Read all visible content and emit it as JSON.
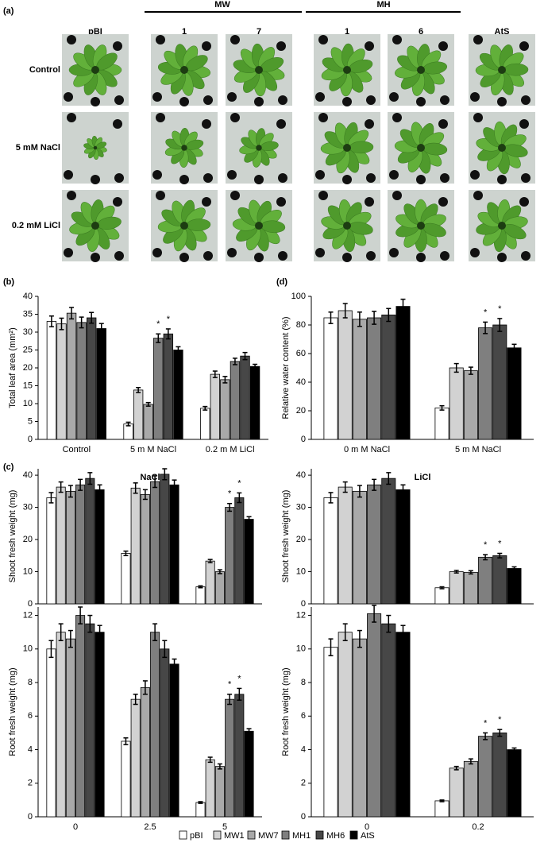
{
  "panel_labels": [
    "(a)",
    "(b)",
    "(c)",
    "(d)"
  ],
  "photo_grid": {
    "columns": [
      "pBI",
      "1",
      "7",
      "1",
      "6",
      "AtS"
    ],
    "groups": [
      "MW",
      "MH"
    ],
    "rows": [
      "Control",
      "5 mM NaCl",
      "0.2 mM LiCl"
    ]
  },
  "series_styles": [
    {
      "name": "pBI",
      "color": "#ffffff"
    },
    {
      "name": "MW1",
      "color": "#d2d2d2"
    },
    {
      "name": "MW7",
      "color": "#a9a9a9"
    },
    {
      "name": "MH1",
      "color": "#7f7f7f"
    },
    {
      "name": "MH6",
      "color": "#474747"
    },
    {
      "name": "AtS",
      "color": "#000000"
    }
  ],
  "chart_data": [
    {
      "type": "bar",
      "y_label": "Total leaf area (mm²)",
      "categories": [
        "Control",
        "5 m M NaCl",
        "0.2 m M LiCl"
      ],
      "ylim": [
        0,
        40
      ],
      "yticks": [
        0,
        5,
        10,
        15,
        20,
        25,
        30,
        35,
        40
      ],
      "annotations": [
        "*",
        "*"
      ],
      "series": [
        {
          "values": [
            33,
            4.3,
            8.7
          ],
          "errors": [
            1.5,
            0.5,
            0.5
          ]
        },
        {
          "values": [
            32.3,
            13.8,
            18.2
          ],
          "errors": [
            1.6,
            0.7,
            0.9
          ]
        },
        {
          "values": [
            35.3,
            9.8,
            16.7
          ],
          "errors": [
            1.6,
            0.5,
            0.9
          ]
        },
        {
          "values": [
            32.7,
            28.3,
            21.8
          ],
          "errors": [
            1.5,
            1.2,
            0.9
          ]
        },
        {
          "values": [
            34,
            29.5,
            23.3
          ],
          "errors": [
            1.5,
            1.4,
            1
          ]
        },
        {
          "values": [
            31,
            25,
            20.4
          ],
          "errors": [
            1.4,
            0.9,
            0.6
          ]
        }
      ]
    },
    {
      "type": "bar",
      "y_label": "Relative water content (%)",
      "categories": [
        "0 m M NaCl",
        "5 m M NaCl"
      ],
      "ylim": [
        0,
        100
      ],
      "yticks": [
        0,
        20,
        40,
        60,
        80,
        100
      ],
      "annotations": [
        "*",
        "*"
      ],
      "series": [
        {
          "values": [
            85,
            22
          ],
          "errors": [
            4,
            1.5
          ]
        },
        {
          "values": [
            90,
            50
          ],
          "errors": [
            5,
            3
          ]
        },
        {
          "values": [
            84,
            48
          ],
          "errors": [
            5,
            2.5
          ]
        },
        {
          "values": [
            85,
            78
          ],
          "errors": [
            4.5,
            4
          ]
        },
        {
          "values": [
            87,
            80
          ],
          "errors": [
            4.5,
            4.5
          ]
        },
        {
          "values": [
            93,
            64
          ],
          "errors": [
            5,
            2.5
          ]
        }
      ]
    },
    {
      "type": "bar",
      "title": "NaCl",
      "y_label": "Shoot fresh weight (mg)",
      "categories": [
        null,
        null,
        null
      ],
      "ylim": [
        0,
        42
      ],
      "yticks": [
        0,
        10,
        20,
        30,
        40
      ],
      "annotations": [
        "*",
        "*"
      ],
      "series": [
        {
          "values": [
            33,
            15.7,
            5.3
          ],
          "errors": [
            1.6,
            0.7,
            0.3
          ]
        },
        {
          "values": [
            36.3,
            36,
            13.3
          ],
          "errors": [
            1.6,
            1.6,
            0.5
          ]
        },
        {
          "values": [
            35,
            34,
            10
          ],
          "errors": [
            1.8,
            1.5,
            0.6
          ]
        },
        {
          "values": [
            37,
            38,
            30
          ],
          "errors": [
            1.7,
            1.8,
            1.2
          ]
        },
        {
          "values": [
            39,
            40.3,
            33
          ],
          "errors": [
            1.8,
            1.7,
            1.5
          ]
        },
        {
          "values": [
            35.5,
            37,
            26.3
          ],
          "errors": [
            1.5,
            1.5,
            0.8
          ]
        }
      ]
    },
    {
      "type": "bar",
      "y_label": "Root fresh weight (mg)",
      "categories": [
        "0",
        "2.5",
        "5"
      ],
      "ylim": [
        0,
        12.5
      ],
      "yticks": [
        0,
        2,
        4,
        6,
        8,
        10,
        12
      ],
      "annotations": [
        "*",
        "*"
      ],
      "series": [
        {
          "values": [
            10,
            4.5,
            0.85
          ],
          "errors": [
            0.5,
            0.2,
            0.05
          ]
        },
        {
          "values": [
            11,
            7,
            3.4
          ],
          "errors": [
            0.5,
            0.3,
            0.15
          ]
        },
        {
          "values": [
            10.6,
            7.7,
            3
          ],
          "errors": [
            0.5,
            0.4,
            0.15
          ]
        },
        {
          "values": [
            12,
            11,
            7
          ],
          "errors": [
            0.5,
            0.5,
            0.3
          ]
        },
        {
          "values": [
            11.5,
            10,
            7.3
          ],
          "errors": [
            0.5,
            0.5,
            0.35
          ]
        },
        {
          "values": [
            11,
            9.1,
            5.1
          ],
          "errors": [
            0.4,
            0.3,
            0.15
          ]
        }
      ]
    },
    {
      "type": "bar",
      "title": "LiCl",
      "y_label": "Shoot fresh weight (mg)",
      "categories": [
        null,
        null
      ],
      "ylim": [
        0,
        42
      ],
      "yticks": [
        0,
        10,
        20,
        30,
        40
      ],
      "annotations": [
        "*",
        "*"
      ],
      "series": [
        {
          "values": [
            33,
            5
          ],
          "errors": [
            1.6,
            0.3
          ]
        },
        {
          "values": [
            36.3,
            10
          ],
          "errors": [
            1.6,
            0.4
          ]
        },
        {
          "values": [
            35,
            9.8
          ],
          "errors": [
            1.8,
            0.5
          ]
        },
        {
          "values": [
            37,
            14.5
          ],
          "errors": [
            1.7,
            0.8
          ]
        },
        {
          "values": [
            39,
            15
          ],
          "errors": [
            1.8,
            0.7
          ]
        },
        {
          "values": [
            35.5,
            11
          ],
          "errors": [
            1.5,
            0.5
          ]
        }
      ]
    },
    {
      "type": "bar",
      "y_label": "Root fresh weight (mg)",
      "categories": [
        "0",
        "0.2"
      ],
      "ylim": [
        0,
        12.5
      ],
      "yticks": [
        0,
        2,
        4,
        6,
        8,
        10,
        12
      ],
      "annotations": [
        "*",
        "*"
      ],
      "series": [
        {
          "values": [
            10.1,
            0.95
          ],
          "errors": [
            0.5,
            0.05
          ]
        },
        {
          "values": [
            11,
            2.9
          ],
          "errors": [
            0.5,
            0.1
          ]
        },
        {
          "values": [
            10.6,
            3.3
          ],
          "errors": [
            0.5,
            0.15
          ]
        },
        {
          "values": [
            12.1,
            4.8
          ],
          "errors": [
            0.5,
            0.2
          ]
        },
        {
          "values": [
            11.5,
            5
          ],
          "errors": [
            0.5,
            0.2
          ]
        },
        {
          "values": [
            11,
            4
          ],
          "errors": [
            0.4,
            0.1
          ]
        }
      ]
    }
  ]
}
